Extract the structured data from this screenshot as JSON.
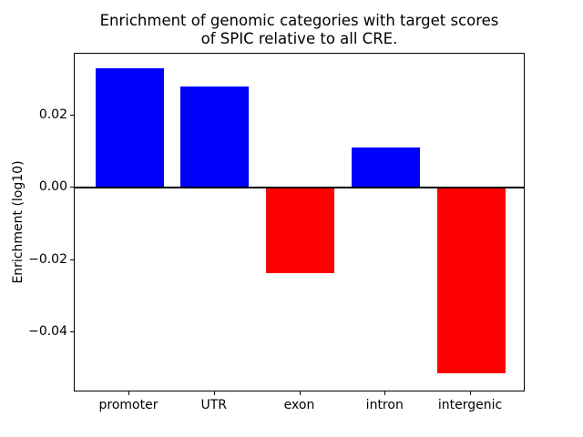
{
  "chart_data": {
    "type": "bar",
    "title": [
      "Enrichment of genomic categories with target scores",
      "of SPIC relative to all CRE."
    ],
    "xlabel": "",
    "ylabel": "Enrichment (log10)",
    "categories": [
      "promoter",
      "UTR",
      "exon",
      "intron",
      "intergenic"
    ],
    "values": [
      0.033,
      0.028,
      -0.0236,
      0.011,
      -0.0513
    ],
    "bar_colors": [
      "#0000ff",
      "#0000ff",
      "#ff0000",
      "#0000ff",
      "#ff0000"
    ],
    "positive_color": "#0000ff",
    "negative_color": "#ff0000",
    "yticks": [
      {
        "value": 0.02,
        "label": "0.02"
      },
      {
        "value": 0.0,
        "label": "0.00"
      },
      {
        "value": -0.02,
        "label": "−0.02"
      },
      {
        "value": -0.04,
        "label": "−0.04"
      }
    ],
    "ylim": [
      -0.0566,
      0.037
    ],
    "xlim": [
      -0.64,
      4.64
    ],
    "bar_width_units": 0.8,
    "grid": false,
    "zero_line": true,
    "legend": "none",
    "axis_color": "#000000",
    "background_color": "#ffffff"
  }
}
